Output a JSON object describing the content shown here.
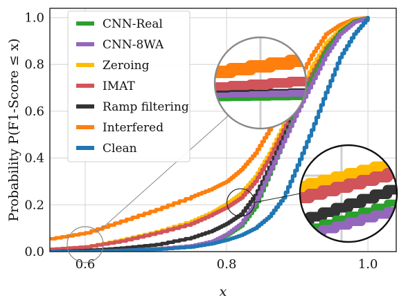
{
  "chart_data": {
    "type": "line",
    "xlabel": "x",
    "ylabel": "Probability P(F1-Score ≤ x)",
    "xlim": [
      0.55,
      1.04
    ],
    "ylim": [
      0.0,
      1.04
    ],
    "x_ticks": [
      "0.6",
      "0.8",
      "1.0"
    ],
    "x_tick_values": [
      0.6,
      0.8,
      1.0
    ],
    "y_ticks": [
      "0.0",
      "0.2",
      "0.4",
      "0.6",
      "0.8",
      "1.0"
    ],
    "y_tick_values": [
      0.0,
      0.2,
      0.4,
      0.6,
      0.8,
      1.0
    ],
    "grid": true,
    "legend_position": "top-left",
    "series": [
      {
        "name": "CNN-Real",
        "color": "#2ca02c",
        "points": [
          [
            0.55,
            0.0
          ],
          [
            0.6,
            0.0
          ],
          [
            0.65,
            0.005
          ],
          [
            0.7,
            0.012
          ],
          [
            0.75,
            0.025
          ],
          [
            0.78,
            0.04
          ],
          [
            0.8,
            0.07
          ],
          [
            0.82,
            0.11
          ],
          [
            0.84,
            0.19
          ],
          [
            0.86,
            0.33
          ],
          [
            0.88,
            0.47
          ],
          [
            0.9,
            0.62
          ],
          [
            0.92,
            0.74
          ],
          [
            0.94,
            0.86
          ],
          [
            0.96,
            0.94
          ],
          [
            0.98,
            0.985
          ],
          [
            1.0,
            1.0
          ]
        ]
      },
      {
        "name": "CNN-8WA",
        "color": "#9467bd",
        "points": [
          [
            0.55,
            0.0
          ],
          [
            0.6,
            0.0
          ],
          [
            0.65,
            0.005
          ],
          [
            0.7,
            0.012
          ],
          [
            0.75,
            0.025
          ],
          [
            0.78,
            0.045
          ],
          [
            0.8,
            0.075
          ],
          [
            0.82,
            0.12
          ],
          [
            0.84,
            0.21
          ],
          [
            0.86,
            0.34
          ],
          [
            0.88,
            0.47
          ],
          [
            0.9,
            0.6
          ],
          [
            0.92,
            0.72
          ],
          [
            0.94,
            0.84
          ],
          [
            0.96,
            0.93
          ],
          [
            0.98,
            0.98
          ],
          [
            1.0,
            1.0
          ]
        ]
      },
      {
        "name": "Zeroing",
        "color": "#ffbb00",
        "points": [
          [
            0.55,
            0.01
          ],
          [
            0.6,
            0.02
          ],
          [
            0.65,
            0.05
          ],
          [
            0.7,
            0.085
          ],
          [
            0.75,
            0.13
          ],
          [
            0.78,
            0.17
          ],
          [
            0.8,
            0.205
          ],
          [
            0.82,
            0.25
          ],
          [
            0.84,
            0.32
          ],
          [
            0.86,
            0.42
          ],
          [
            0.88,
            0.54
          ],
          [
            0.9,
            0.66
          ],
          [
            0.92,
            0.79
          ],
          [
            0.94,
            0.89
          ],
          [
            0.96,
            0.95
          ],
          [
            0.98,
            0.99
          ],
          [
            1.0,
            1.0
          ]
        ]
      },
      {
        "name": "IMAT",
        "color": "#d1545a",
        "points": [
          [
            0.55,
            0.01
          ],
          [
            0.6,
            0.02
          ],
          [
            0.65,
            0.045
          ],
          [
            0.7,
            0.08
          ],
          [
            0.75,
            0.12
          ],
          [
            0.78,
            0.16
          ],
          [
            0.8,
            0.19
          ],
          [
            0.82,
            0.23
          ],
          [
            0.84,
            0.3
          ],
          [
            0.86,
            0.4
          ],
          [
            0.88,
            0.52
          ],
          [
            0.9,
            0.64
          ],
          [
            0.92,
            0.76
          ],
          [
            0.94,
            0.87
          ],
          [
            0.96,
            0.94
          ],
          [
            0.98,
            0.985
          ],
          [
            1.0,
            1.0
          ]
        ]
      },
      {
        "name": "Ramp filtering",
        "color": "#333333",
        "points": [
          [
            0.55,
            0.0
          ],
          [
            0.6,
            0.005
          ],
          [
            0.65,
            0.015
          ],
          [
            0.7,
            0.03
          ],
          [
            0.75,
            0.06
          ],
          [
            0.78,
            0.09
          ],
          [
            0.8,
            0.12
          ],
          [
            0.82,
            0.16
          ],
          [
            0.84,
            0.24
          ],
          [
            0.86,
            0.36
          ],
          [
            0.88,
            0.49
          ],
          [
            0.9,
            0.62
          ],
          [
            0.92,
            0.74
          ],
          [
            0.94,
            0.86
          ],
          [
            0.96,
            0.94
          ],
          [
            0.98,
            0.985
          ],
          [
            1.0,
            1.0
          ]
        ]
      },
      {
        "name": "Interfered",
        "color": "#ff7f0e",
        "points": [
          [
            0.55,
            0.055
          ],
          [
            0.6,
            0.08
          ],
          [
            0.65,
            0.13
          ],
          [
            0.7,
            0.18
          ],
          [
            0.75,
            0.235
          ],
          [
            0.78,
            0.27
          ],
          [
            0.8,
            0.3
          ],
          [
            0.82,
            0.35
          ],
          [
            0.84,
            0.42
          ],
          [
            0.86,
            0.52
          ],
          [
            0.88,
            0.62
          ],
          [
            0.9,
            0.73
          ],
          [
            0.92,
            0.84
          ],
          [
            0.94,
            0.93
          ],
          [
            0.96,
            0.97
          ],
          [
            0.98,
            0.995
          ],
          [
            1.0,
            1.0
          ]
        ]
      },
      {
        "name": "Clean",
        "color": "#1f77b4",
        "points": [
          [
            0.55,
            0.0
          ],
          [
            0.6,
            0.0
          ],
          [
            0.65,
            0.005
          ],
          [
            0.7,
            0.01
          ],
          [
            0.75,
            0.02
          ],
          [
            0.78,
            0.035
          ],
          [
            0.8,
            0.05
          ],
          [
            0.82,
            0.07
          ],
          [
            0.84,
            0.1
          ],
          [
            0.86,
            0.15
          ],
          [
            0.88,
            0.23
          ],
          [
            0.9,
            0.37
          ],
          [
            0.92,
            0.52
          ],
          [
            0.94,
            0.68
          ],
          [
            0.96,
            0.83
          ],
          [
            0.98,
            0.93
          ],
          [
            1.0,
            1.0
          ]
        ]
      }
    ],
    "zoom_insets": [
      {
        "source_center": [
          0.82,
          0.2
        ],
        "inset_position": "center-right"
      },
      {
        "source_center": [
          0.6,
          0.03
        ],
        "inset_position": "upper-middle"
      }
    ]
  }
}
